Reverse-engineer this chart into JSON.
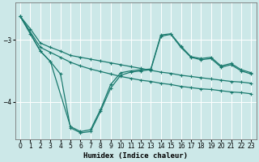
{
  "xlabel": "Humidex (Indice chaleur)",
  "bg_color": "#cce8e8",
  "grid_color": "#ffffff",
  "line_color": "#1a7a6e",
  "xlim": [
    -0.5,
    23.5
  ],
  "ylim": [
    -4.6,
    -2.4
  ],
  "yticks": [
    -4,
    -3
  ],
  "xticks": [
    0,
    1,
    2,
    3,
    4,
    5,
    6,
    7,
    8,
    9,
    10,
    11,
    12,
    13,
    14,
    15,
    16,
    17,
    18,
    19,
    20,
    21,
    22,
    23
  ],
  "series": [
    {
      "x": [
        0,
        1,
        2,
        3,
        4,
        5,
        6,
        7,
        8,
        9,
        10,
        11,
        12,
        13,
        14,
        15,
        16,
        17,
        18,
        19,
        20,
        21,
        22,
        23
      ],
      "y": [
        -2.62,
        -2.82,
        -3.05,
        -3.12,
        -3.18,
        -3.25,
        -3.28,
        -3.31,
        -3.34,
        -3.37,
        -3.4,
        -3.43,
        -3.46,
        -3.49,
        -3.52,
        -3.54,
        -3.57,
        -3.59,
        -3.61,
        -3.63,
        -3.65,
        -3.67,
        -3.68,
        -3.7
      ]
    },
    {
      "x": [
        0,
        2,
        3,
        4,
        5,
        6,
        7,
        8,
        9,
        10,
        11,
        12,
        13,
        14,
        15,
        16,
        17,
        18,
        19,
        20,
        21,
        22,
        23
      ],
      "y": [
        -2.62,
        -3.12,
        -3.2,
        -3.28,
        -3.36,
        -3.42,
        -3.47,
        -3.51,
        -3.55,
        -3.59,
        -3.62,
        -3.65,
        -3.67,
        -3.7,
        -3.72,
        -3.75,
        -3.77,
        -3.79,
        -3.8,
        -3.82,
        -3.84,
        -3.85,
        -3.87
      ]
    },
    {
      "x": [
        0,
        1,
        2,
        3,
        5,
        6,
        7,
        8,
        9,
        10,
        11,
        12,
        13,
        14,
        15,
        16,
        17,
        18,
        19,
        20,
        21,
        22,
        23
      ],
      "y": [
        -2.62,
        -2.9,
        -3.18,
        -3.35,
        -4.4,
        -4.48,
        -4.45,
        -4.12,
        -3.72,
        -3.53,
        -3.5,
        -3.48,
        -3.47,
        -2.92,
        -2.9,
        -3.1,
        -3.27,
        -3.3,
        -3.28,
        -3.42,
        -3.38,
        -3.48,
        -3.53
      ]
    },
    {
      "x": [
        0,
        2,
        3,
        4,
        5,
        6,
        7,
        8,
        9,
        10,
        11,
        12,
        13,
        14,
        15,
        16,
        17,
        18,
        19,
        20,
        21,
        22,
        23
      ],
      "y": [
        -2.62,
        -3.18,
        -3.35,
        -3.55,
        -4.42,
        -4.5,
        -4.48,
        -4.15,
        -3.78,
        -3.57,
        -3.52,
        -3.5,
        -3.48,
        -2.94,
        -2.91,
        -3.12,
        -3.28,
        -3.32,
        -3.3,
        -3.44,
        -3.4,
        -3.5,
        -3.55
      ]
    }
  ]
}
